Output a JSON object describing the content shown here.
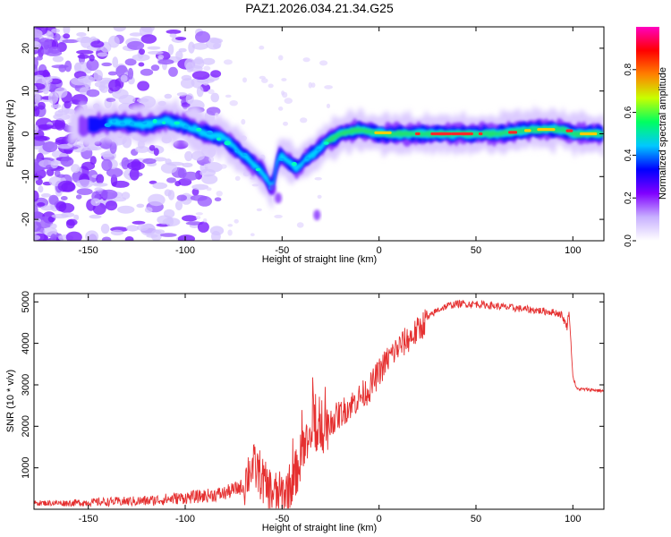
{
  "title": "PAZ1.2026.034.21.34.G25",
  "chart_data": [
    {
      "type": "heatmap",
      "name": "spectrogram",
      "xlabel": "Height of straight line (km)",
      "ylabel": "Frequency (Hz)",
      "xlim": [
        -178,
        116
      ],
      "ylim": [
        -25,
        25
      ],
      "xticks": [
        -150,
        -100,
        -50,
        0,
        50,
        100
      ],
      "yticks": [
        -20,
        -10,
        0,
        10,
        20
      ],
      "ridge": [
        [
          -150,
          2
        ],
        [
          -140,
          2.5
        ],
        [
          -130,
          2.5
        ],
        [
          -120,
          2
        ],
        [
          -110,
          3
        ],
        [
          -100,
          2
        ],
        [
          -90,
          0
        ],
        [
          -80,
          -1
        ],
        [
          -75,
          -3
        ],
        [
          -70,
          -5
        ],
        [
          -65,
          -7
        ],
        [
          -60,
          -9
        ],
        [
          -55,
          -13
        ],
        [
          -52,
          -5
        ],
        [
          -48,
          -6
        ],
        [
          -42,
          -8
        ],
        [
          -38,
          -6
        ],
        [
          -32,
          -4
        ],
        [
          -28,
          -2
        ],
        [
          -20,
          0
        ],
        [
          -10,
          1
        ],
        [
          0,
          0
        ],
        [
          10,
          0
        ],
        [
          20,
          0
        ],
        [
          40,
          0
        ],
        [
          60,
          0
        ],
        [
          80,
          1
        ],
        [
          95,
          1
        ],
        [
          100,
          0
        ],
        [
          116,
          0
        ]
      ],
      "colorbar": {
        "label": "Normalized spectral amplitude",
        "range": [
          0,
          1
        ],
        "ticks": [
          "0.0",
          "0.2",
          "0.4",
          "0.6",
          "0.8"
        ],
        "colors": [
          "#ffffff",
          "#c8b0ff",
          "#8000ff",
          "#0000ff",
          "#00c8ff",
          "#00ff60",
          "#c8ff00",
          "#ff8000",
          "#ff0000",
          "#ff00c0"
        ]
      }
    },
    {
      "type": "line",
      "name": "snr",
      "xlabel": "Height of straight line (km)",
      "ylabel": "SNR (10 * v/v)",
      "xlim": [
        -178,
        116
      ],
      "ylim": [
        0,
        5200
      ],
      "xticks": [
        -150,
        -100,
        -50,
        0,
        50,
        100
      ],
      "yticks": [
        1000,
        2000,
        3000,
        4000,
        5000
      ],
      "color": "#e53030",
      "series": [
        {
          "name": "SNR",
          "x": [
            -178,
            -160,
            -140,
            -120,
            -100,
            -90,
            -80,
            -70,
            -66,
            -62,
            -58,
            -55,
            -52,
            -48,
            -44,
            -40,
            -36,
            -32,
            -28,
            -24,
            -20,
            -15,
            -10,
            -5,
            0,
            5,
            10,
            15,
            20,
            25,
            30,
            35,
            40,
            50,
            60,
            70,
            80,
            90,
            94,
            97,
            98,
            100,
            102,
            110,
            116
          ],
          "y": [
            150,
            150,
            180,
            200,
            280,
            320,
            380,
            560,
            1050,
            900,
            500,
            420,
            300,
            420,
            700,
            1300,
            1600,
            1800,
            1950,
            2150,
            2300,
            2500,
            2700,
            2900,
            3300,
            3650,
            3900,
            4100,
            4300,
            4600,
            4800,
            4900,
            4950,
            4950,
            4900,
            4850,
            4800,
            4750,
            4700,
            4400,
            4800,
            3200,
            2900,
            2880,
            2850
          ]
        }
      ]
    }
  ]
}
